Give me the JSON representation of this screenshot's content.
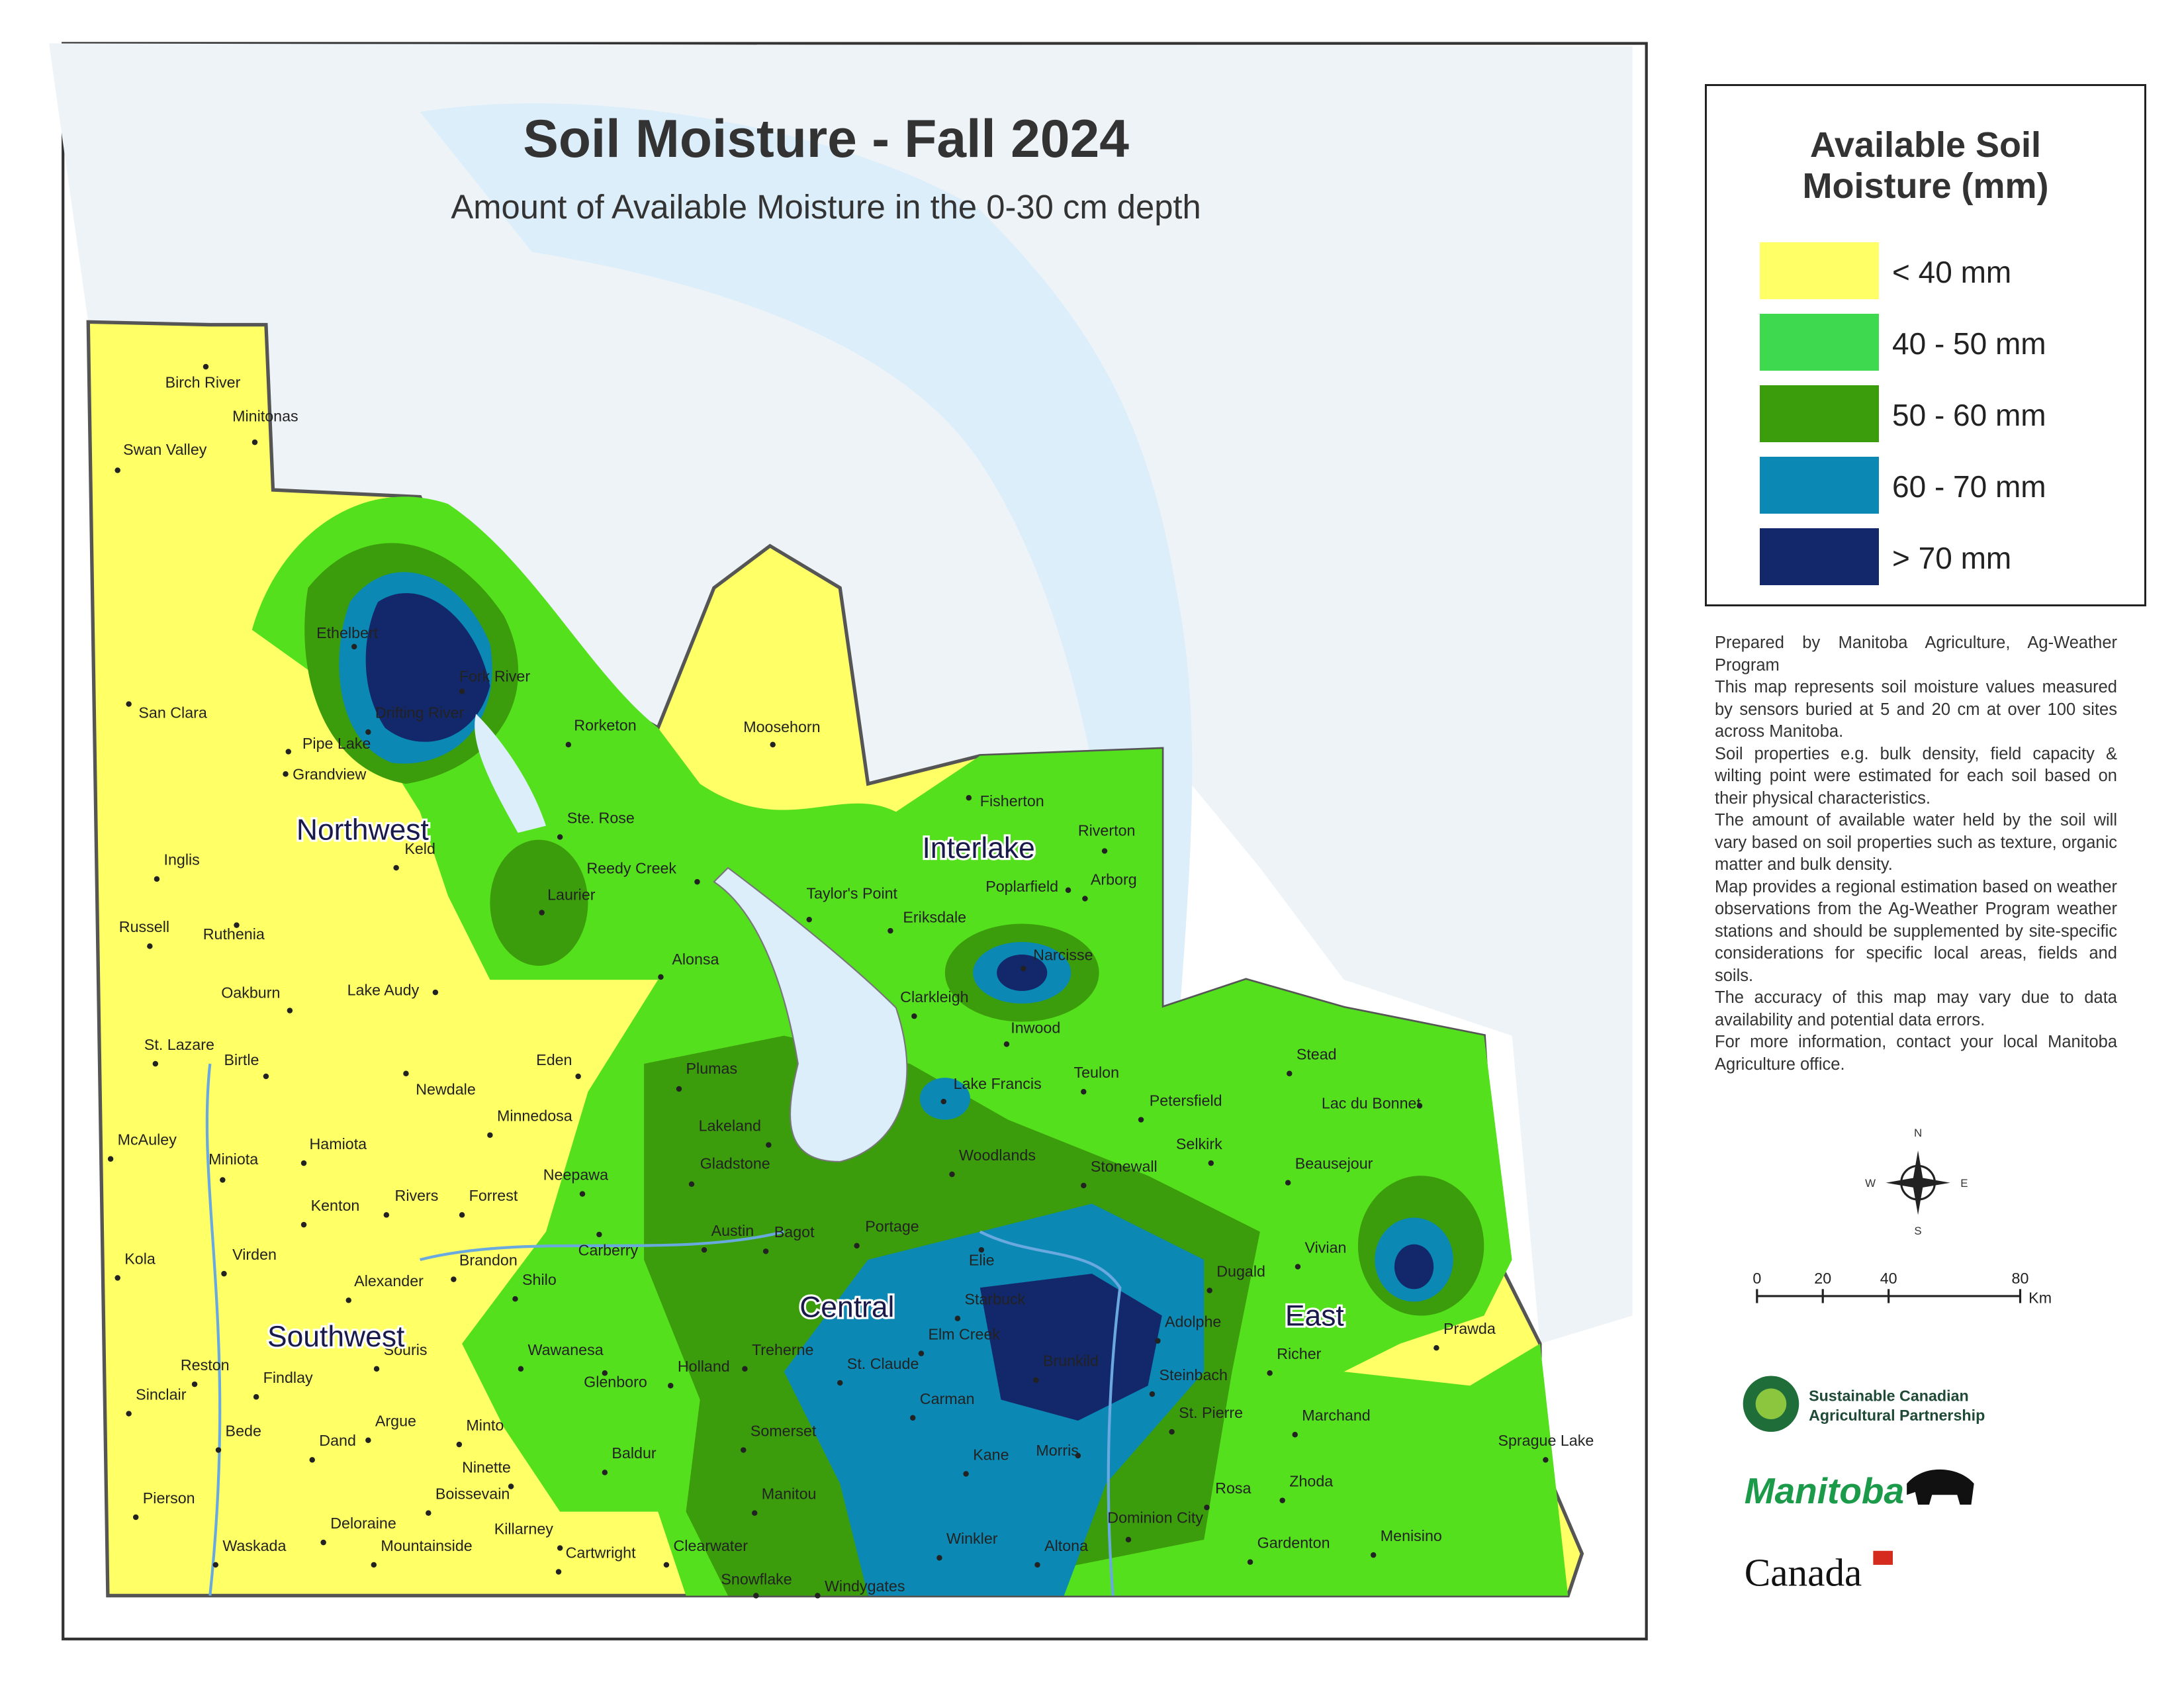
{
  "title": "Soil Moisture - Fall 2024",
  "subtitle": "Amount of Available Moisture in the 0-30 cm depth",
  "legend": {
    "title": [
      "Available Soil",
      "Moisture (mm)"
    ],
    "items": [
      {
        "label": "< 40 mm",
        "color": "#ffff66"
      },
      {
        "label": "40 - 50 mm",
        "color": "#3fd94f"
      },
      {
        "label": "50 - 60 mm",
        "color": "#3b9c0c"
      },
      {
        "label": "60 - 70 mm",
        "color": "#0b89b4"
      },
      {
        "label": "> 70 mm",
        "color": "#13286a"
      }
    ]
  },
  "notes": [
    "Prepared by Manitoba Agriculture, Ag-Weather Program",
    "This map represents soil moisture values measured by sensors buried at 5 and 20 cm at over 100 sites across Manitoba.",
    "Soil properties e.g. bulk density, field capacity & wilting point were estimated for each soil based on their physical characteristics.",
    "The amount of available water held by the soil will vary based on soil properties such as texture, organic matter and bulk density.",
    "Map provides a regional estimation based on weather observations from the Ag-Weather Program weather stations and should be supplemented by site-specific considerations for specific local areas, fields and soils.",
    "The accuracy of this map may vary due to data availability and potential data errors.",
    "For more information, contact your local Manitoba Agriculture office."
  ],
  "compass": {
    "n": "N",
    "w": "W",
    "e": "E",
    "s": "S"
  },
  "scale": {
    "ticks": [
      0,
      20,
      40,
      80
    ],
    "unit": "Km"
  },
  "logos": {
    "scap": [
      "Sustainable Canadian",
      "Agricultural Partnership"
    ],
    "manitoba": "Manitoba",
    "canada": "Canada"
  },
  "regions": [
    "Northwest",
    "Interlake",
    "Central",
    "Southwest",
    "East"
  ],
  "towns": [
    "Birch River",
    "Minitonas",
    "Swan Valley",
    "Ethelbert",
    "Fork River",
    "Drifting River",
    "San Clara",
    "Pipe Lake",
    "Grandview",
    "Rorketon",
    "Moosehorn",
    "Ste. Rose",
    "Keld",
    "Inglis",
    "Reedy Creek",
    "Laurier",
    "Fisherton",
    "Riverton",
    "Taylor's Point",
    "Poplarfield",
    "Arborg",
    "Eriksdale",
    "Russell",
    "Ruthenia",
    "Alonsa",
    "Narcisse",
    "Oakburn",
    "Lake Audy",
    "Clarkleigh",
    "Inwood",
    "St. Lazare",
    "Birtle",
    "Eden",
    "Plumas",
    "Stead",
    "Lake Francis",
    "Teulon",
    "Newdale",
    "Lac du Bonnet",
    "Petersfield",
    "Minnedosa",
    "Lakeland",
    "McAuley",
    "Hamiota",
    "Woodlands",
    "Selkirk",
    "Miniota",
    "Gladstone",
    "Beausejour",
    "Neepawa",
    "Stonewall",
    "Kenton",
    "Rivers",
    "Forrest",
    "Carberry",
    "Austin",
    "Bagot",
    "Portage",
    "Elie",
    "Vivian",
    "Kola",
    "Virden",
    "Brandon",
    "Shilo",
    "Alexander",
    "Dugald",
    "Starbuck",
    "Elm Creek",
    "Adolphe",
    "Prawda",
    "Wawanesa",
    "Souris",
    "Treherne",
    "St. Claude",
    "Brunkild",
    "Richer",
    "Reston",
    "Holland",
    "Glenboro",
    "Steinbach",
    "Findlay",
    "Sinclair",
    "Carman",
    "Marchand",
    "Argue",
    "Dand",
    "Minto",
    "Somerset",
    "St. Pierre",
    "Bede",
    "Sprague Lake",
    "Baldur",
    "Kane",
    "Morris",
    "Ninette",
    "Zhoda",
    "Rosa",
    "Pierson",
    "Boissevain",
    "Manitou",
    "Dominion City",
    "Deloraine",
    "Gardenton",
    "Menisino",
    "Killarney",
    "Winkler",
    "Altona",
    "Waskada",
    "Mountainside",
    "Clearwater",
    "Cartwright",
    "Snowflake",
    "Windygates"
  ]
}
